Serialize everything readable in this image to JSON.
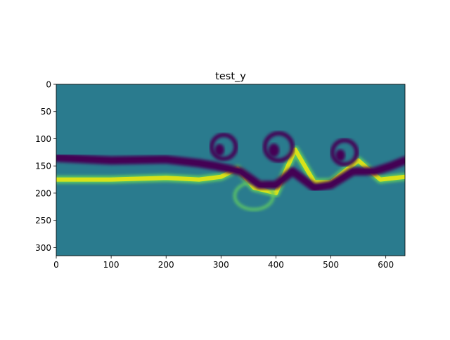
{
  "chart_data": {
    "type": "heatmap",
    "title": "test_y",
    "xlabel": "",
    "ylabel": "",
    "xlim": [
      0,
      635
    ],
    "ylim": [
      315,
      0
    ],
    "xticks": [
      0,
      100,
      200,
      300,
      400,
      500,
      600
    ],
    "yticks": [
      0,
      50,
      100,
      150,
      200,
      250,
      300
    ],
    "grid": false,
    "colormap": "viridis",
    "colors": {
      "background_field": "#2a7b8e",
      "low": "#440154",
      "high": "#d8e219",
      "mid_high": "#5ec962",
      "axis": "#000000"
    },
    "features": {
      "dark_band_y": [
        [
          0,
          135
        ],
        [
          100,
          140
        ],
        [
          200,
          138
        ],
        [
          260,
          145
        ],
        [
          290,
          150
        ],
        [
          335,
          160
        ],
        [
          370,
          185
        ],
        [
          400,
          185
        ],
        [
          430,
          160
        ],
        [
          470,
          190
        ],
        [
          500,
          185
        ],
        [
          540,
          160
        ],
        [
          580,
          160
        ],
        [
          610,
          150
        ],
        [
          635,
          140
        ]
      ],
      "bright_band_y": [
        [
          0,
          175
        ],
        [
          100,
          175
        ],
        [
          200,
          172
        ],
        [
          260,
          175
        ],
        [
          300,
          170
        ],
        [
          330,
          155
        ],
        [
          360,
          190
        ],
        [
          400,
          200
        ],
        [
          435,
          120
        ],
        [
          470,
          180
        ],
        [
          500,
          180
        ],
        [
          550,
          140
        ],
        [
          590,
          175
        ],
        [
          635,
          170
        ]
      ],
      "vortices": [
        {
          "x": 305,
          "y": 115,
          "r": 22
        },
        {
          "x": 405,
          "y": 115,
          "r": 25
        },
        {
          "x": 525,
          "y": 125,
          "r": 22
        }
      ],
      "lower_lobe": {
        "x": 360,
        "y": 205,
        "rx": 35,
        "ry": 25
      }
    }
  }
}
